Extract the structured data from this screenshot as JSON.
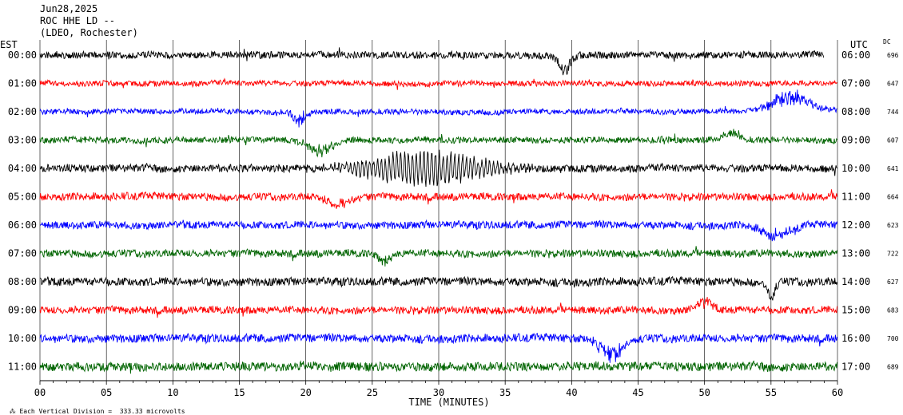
{
  "header": {
    "date": "Jun28,2025",
    "station": "ROC HHE LD --",
    "network": "(LDEO, Rochester)"
  },
  "corner_labels": {
    "left_timezone": "EST",
    "right_timezone": "UTC",
    "dc_label": "DC"
  },
  "footer": {
    "division_note": "Each Vertical Division =  333.33 microvolts"
  },
  "colors": {
    "black": "#000000",
    "red": "#ff0000",
    "blue": "#0000ff",
    "green": "#006400",
    "grid": "#000000"
  },
  "chart_data": {
    "type": "line",
    "title": "ROC HHE LD --",
    "xlabel": "TIME (MINUTES)",
    "ylabel": "",
    "xlim": [
      0,
      60
    ],
    "x_ticks": [
      "00",
      "05",
      "10",
      "15",
      "20",
      "25",
      "30",
      "35",
      "40",
      "45",
      "50",
      "55",
      "60"
    ],
    "color_cycle": [
      "black",
      "red",
      "blue",
      "green"
    ],
    "rows": [
      {
        "est": "00:00",
        "utc": "06:00",
        "dc": "696",
        "color": "black",
        "end_minute": 59,
        "noise": 1.0,
        "events": [
          {
            "t": 39.5,
            "w": 0.6,
            "amp": 3.2
          }
        ]
      },
      {
        "est": "01:00",
        "utc": "07:00",
        "dc": "647",
        "color": "red",
        "end_minute": 60,
        "noise": 0.8,
        "events": []
      },
      {
        "est": "02:00",
        "utc": "08:00",
        "dc": "744",
        "color": "blue",
        "end_minute": 60,
        "noise": 0.8,
        "events": [
          {
            "t": 19.5,
            "w": 0.6,
            "amp": 2.0
          },
          {
            "t": 56.5,
            "w": 2.0,
            "amp": -3.0
          }
        ]
      },
      {
        "est": "03:00",
        "utc": "09:00",
        "dc": "607",
        "color": "green",
        "end_minute": 60,
        "noise": 0.9,
        "events": [
          {
            "t": 21.0,
            "w": 1.2,
            "amp": 2.2
          },
          {
            "t": 52.0,
            "w": 0.8,
            "amp": -1.6
          }
        ]
      },
      {
        "est": "04:00",
        "utc": "10:00",
        "dc": "641",
        "color": "black",
        "end_minute": 60,
        "noise": 1.1,
        "events": [
          {
            "t": 29.0,
            "w": 5.0,
            "amp": 4.5
          }
        ]
      },
      {
        "est": "05:00",
        "utc": "11:00",
        "dc": "664",
        "color": "red",
        "end_minute": 60,
        "noise": 1.1,
        "events": [
          {
            "t": 22.5,
            "w": 1.2,
            "amp": 1.5
          }
        ]
      },
      {
        "est": "06:00",
        "utc": "12:00",
        "dc": "623",
        "color": "blue",
        "end_minute": 60,
        "noise": 1.1,
        "events": [
          {
            "t": 55.5,
            "w": 1.5,
            "amp": 2.2
          }
        ]
      },
      {
        "est": "07:00",
        "utc": "13:00",
        "dc": "722",
        "color": "green",
        "end_minute": 60,
        "noise": 1.1,
        "events": [
          {
            "t": 26.0,
            "w": 0.6,
            "amp": 1.6
          }
        ]
      },
      {
        "est": "08:00",
        "utc": "14:00",
        "dc": "627",
        "color": "black",
        "end_minute": 60,
        "noise": 1.2,
        "events": [
          {
            "t": 55.0,
            "w": 0.4,
            "amp": 3.0
          }
        ]
      },
      {
        "est": "09:00",
        "utc": "15:00",
        "dc": "683",
        "color": "red",
        "end_minute": 60,
        "noise": 1.1,
        "events": [
          {
            "t": 50.0,
            "w": 0.8,
            "amp": -1.5
          }
        ]
      },
      {
        "est": "10:00",
        "utc": "16:00",
        "dc": "700",
        "color": "blue",
        "end_minute": 60,
        "noise": 1.2,
        "events": [
          {
            "t": 43.0,
            "w": 1.2,
            "amp": 3.0
          }
        ]
      },
      {
        "est": "11:00",
        "utc": "17:00",
        "dc": "689",
        "color": "green",
        "end_minute": 60,
        "noise": 1.3,
        "events": []
      }
    ]
  }
}
